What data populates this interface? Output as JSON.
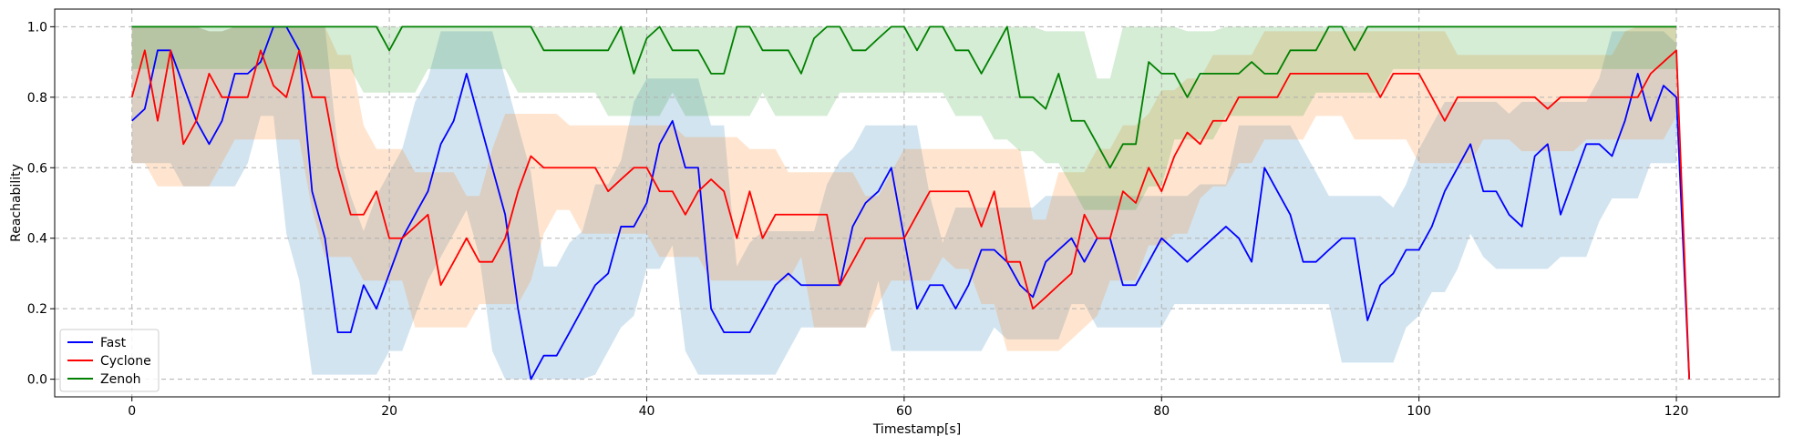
{
  "chart_data": {
    "type": "line",
    "xlabel": "Timestamp[s]",
    "ylabel": "Reachability",
    "xlim": [
      -6,
      128
    ],
    "ylim": [
      -0.05,
      1.05
    ],
    "xticks": [
      0,
      20,
      40,
      60,
      80,
      100,
      120
    ],
    "yticks": [
      0.0,
      0.2,
      0.4,
      0.6,
      0.8,
      1.0
    ],
    "xtick_labels": [
      "0",
      "20",
      "40",
      "60",
      "80",
      "100",
      "120"
    ],
    "ytick_labels": [
      "0.0",
      "0.2",
      "0.4",
      "0.6",
      "0.8",
      "1.0"
    ],
    "grid": true,
    "legend_position": "lower-left",
    "series": [
      {
        "name": "Fast",
        "color": "#0000ff",
        "band_color": "#1f77b4",
        "points": [
          [
            0,
            0.733
          ],
          [
            1,
            0.767
          ],
          [
            2,
            0.933
          ],
          [
            3,
            0.933
          ],
          [
            4,
            0.833
          ],
          [
            5,
            0.733
          ],
          [
            6,
            0.667
          ],
          [
            7,
            0.733
          ],
          [
            8,
            0.867
          ],
          [
            9,
            0.867
          ],
          [
            10,
            0.9
          ],
          [
            11,
            1.0
          ],
          [
            12,
            1.0
          ],
          [
            13,
            0.933
          ],
          [
            14,
            0.533
          ],
          [
            15,
            0.4
          ],
          [
            16,
            0.133
          ],
          [
            17,
            0.133
          ],
          [
            18,
            0.267
          ],
          [
            19,
            0.2
          ],
          [
            20,
            0.3
          ],
          [
            21,
            0.4
          ],
          [
            22,
            0.467
          ],
          [
            23,
            0.533
          ],
          [
            24,
            0.667
          ],
          [
            25,
            0.733
          ],
          [
            26,
            0.867
          ],
          [
            27,
            0.733
          ],
          [
            28,
            0.6
          ],
          [
            29,
            0.467
          ],
          [
            30,
            0.2
          ],
          [
            31,
            0.0
          ],
          [
            32,
            0.067
          ],
          [
            33,
            0.067
          ],
          [
            34,
            0.133
          ],
          [
            35,
            0.2
          ],
          [
            36,
            0.267
          ],
          [
            37,
            0.3
          ],
          [
            38,
            0.433
          ],
          [
            39,
            0.433
          ],
          [
            40,
            0.5
          ],
          [
            41,
            0.667
          ],
          [
            42,
            0.733
          ],
          [
            43,
            0.6
          ],
          [
            44,
            0.6
          ],
          [
            45,
            0.2
          ],
          [
            46,
            0.133
          ],
          [
            47,
            0.133
          ],
          [
            48,
            0.133
          ],
          [
            49,
            0.2
          ],
          [
            50,
            0.267
          ],
          [
            51,
            0.3
          ],
          [
            52,
            0.267
          ],
          [
            53,
            0.267
          ],
          [
            54,
            0.267
          ],
          [
            55,
            0.267
          ],
          [
            56,
            0.433
          ],
          [
            57,
            0.5
          ],
          [
            58,
            0.533
          ],
          [
            59,
            0.6
          ],
          [
            60,
            0.4
          ],
          [
            61,
            0.2
          ],
          [
            62,
            0.267
          ],
          [
            63,
            0.267
          ],
          [
            64,
            0.2
          ],
          [
            65,
            0.267
          ],
          [
            66,
            0.367
          ],
          [
            67,
            0.367
          ],
          [
            68,
            0.333
          ],
          [
            69,
            0.267
          ],
          [
            70,
            0.233
          ],
          [
            71,
            0.333
          ],
          [
            72,
            0.367
          ],
          [
            73,
            0.4
          ],
          [
            74,
            0.333
          ],
          [
            75,
            0.4
          ],
          [
            76,
            0.4
          ],
          [
            77,
            0.267
          ],
          [
            78,
            0.267
          ],
          [
            79,
            0.333
          ],
          [
            80,
            0.4
          ],
          [
            81,
            0.367
          ],
          [
            82,
            0.333
          ],
          [
            83,
            0.367
          ],
          [
            84,
            0.4
          ],
          [
            85,
            0.433
          ],
          [
            86,
            0.4
          ],
          [
            87,
            0.333
          ],
          [
            88,
            0.6
          ],
          [
            89,
            0.533
          ],
          [
            90,
            0.467
          ],
          [
            91,
            0.333
          ],
          [
            92,
            0.333
          ],
          [
            93,
            0.367
          ],
          [
            94,
            0.4
          ],
          [
            95,
            0.4
          ],
          [
            96,
            0.167
          ],
          [
            97,
            0.267
          ],
          [
            98,
            0.3
          ],
          [
            99,
            0.367
          ],
          [
            100,
            0.367
          ],
          [
            101,
            0.433
          ],
          [
            102,
            0.533
          ],
          [
            103,
            0.6
          ],
          [
            104,
            0.667
          ],
          [
            105,
            0.533
          ],
          [
            106,
            0.533
          ],
          [
            107,
            0.467
          ],
          [
            108,
            0.433
          ],
          [
            109,
            0.633
          ],
          [
            110,
            0.667
          ],
          [
            111,
            0.467
          ],
          [
            112,
            0.567
          ],
          [
            113,
            0.667
          ],
          [
            114,
            0.667
          ],
          [
            115,
            0.633
          ],
          [
            116,
            0.733
          ],
          [
            117,
            0.867
          ],
          [
            118,
            0.733
          ],
          [
            119,
            0.833
          ],
          [
            120,
            0.8
          ],
          [
            121,
            0.0
          ]
        ]
      },
      {
        "name": "Cyclone",
        "color": "#ff0000",
        "band_color": "#ff7f0e",
        "points": [
          [
            0,
            0.8
          ],
          [
            1,
            0.933
          ],
          [
            2,
            0.733
          ],
          [
            3,
            0.933
          ],
          [
            4,
            0.667
          ],
          [
            5,
            0.733
          ],
          [
            6,
            0.867
          ],
          [
            7,
            0.8
          ],
          [
            8,
            0.8
          ],
          [
            9,
            0.8
          ],
          [
            10,
            0.933
          ],
          [
            11,
            0.833
          ],
          [
            12,
            0.8
          ],
          [
            13,
            0.933
          ],
          [
            14,
            0.8
          ],
          [
            15,
            0.8
          ],
          [
            16,
            0.6
          ],
          [
            17,
            0.467
          ],
          [
            18,
            0.467
          ],
          [
            19,
            0.533
          ],
          [
            20,
            0.4
          ],
          [
            21,
            0.4
          ],
          [
            22,
            0.433
          ],
          [
            23,
            0.467
          ],
          [
            24,
            0.267
          ],
          [
            25,
            0.333
          ],
          [
            26,
            0.4
          ],
          [
            27,
            0.333
          ],
          [
            28,
            0.333
          ],
          [
            29,
            0.4
          ],
          [
            30,
            0.533
          ],
          [
            31,
            0.633
          ],
          [
            32,
            0.6
          ],
          [
            33,
            0.6
          ],
          [
            34,
            0.6
          ],
          [
            35,
            0.6
          ],
          [
            36,
            0.6
          ],
          [
            37,
            0.533
          ],
          [
            38,
            0.567
          ],
          [
            39,
            0.6
          ],
          [
            40,
            0.6
          ],
          [
            41,
            0.533
          ],
          [
            42,
            0.533
          ],
          [
            43,
            0.467
          ],
          [
            44,
            0.533
          ],
          [
            45,
            0.567
          ],
          [
            46,
            0.533
          ],
          [
            47,
            0.4
          ],
          [
            48,
            0.533
          ],
          [
            49,
            0.4
          ],
          [
            50,
            0.467
          ],
          [
            51,
            0.467
          ],
          [
            52,
            0.467
          ],
          [
            53,
            0.467
          ],
          [
            54,
            0.467
          ],
          [
            55,
            0.267
          ],
          [
            56,
            0.333
          ],
          [
            57,
            0.4
          ],
          [
            58,
            0.4
          ],
          [
            59,
            0.4
          ],
          [
            60,
            0.4
          ],
          [
            61,
            0.467
          ],
          [
            62,
            0.533
          ],
          [
            63,
            0.533
          ],
          [
            64,
            0.533
          ],
          [
            65,
            0.533
          ],
          [
            66,
            0.433
          ],
          [
            67,
            0.533
          ],
          [
            68,
            0.333
          ],
          [
            69,
            0.333
          ],
          [
            70,
            0.2
          ],
          [
            71,
            0.233
          ],
          [
            72,
            0.267
          ],
          [
            73,
            0.3
          ],
          [
            74,
            0.467
          ],
          [
            75,
            0.4
          ],
          [
            76,
            0.4
          ],
          [
            77,
            0.533
          ],
          [
            78,
            0.5
          ],
          [
            79,
            0.6
          ],
          [
            80,
            0.533
          ],
          [
            81,
            0.633
          ],
          [
            82,
            0.7
          ],
          [
            83,
            0.667
          ],
          [
            84,
            0.733
          ],
          [
            85,
            0.733
          ],
          [
            86,
            0.8
          ],
          [
            87,
            0.8
          ],
          [
            88,
            0.8
          ],
          [
            89,
            0.8
          ],
          [
            90,
            0.867
          ],
          [
            91,
            0.867
          ],
          [
            92,
            0.867
          ],
          [
            93,
            0.867
          ],
          [
            94,
            0.867
          ],
          [
            95,
            0.867
          ],
          [
            96,
            0.867
          ],
          [
            97,
            0.8
          ],
          [
            98,
            0.867
          ],
          [
            99,
            0.867
          ],
          [
            100,
            0.867
          ],
          [
            101,
            0.8
          ],
          [
            102,
            0.733
          ],
          [
            103,
            0.8
          ],
          [
            104,
            0.8
          ],
          [
            105,
            0.8
          ],
          [
            106,
            0.8
          ],
          [
            107,
            0.8
          ],
          [
            108,
            0.8
          ],
          [
            109,
            0.8
          ],
          [
            110,
            0.767
          ],
          [
            111,
            0.8
          ],
          [
            112,
            0.8
          ],
          [
            113,
            0.8
          ],
          [
            114,
            0.8
          ],
          [
            115,
            0.8
          ],
          [
            116,
            0.8
          ],
          [
            117,
            0.8
          ],
          [
            118,
            0.867
          ],
          [
            119,
            0.9
          ],
          [
            120,
            0.933
          ],
          [
            121,
            0.0
          ]
        ]
      },
      {
        "name": "Zenoh",
        "color": "#008000",
        "band_color": "#2ca02c",
        "points": [
          [
            0,
            1.0
          ],
          [
            18,
            1.0
          ],
          [
            19,
            1.0
          ],
          [
            20,
            0.933
          ],
          [
            21,
            1.0
          ],
          [
            31,
            1.0
          ],
          [
            32,
            0.933
          ],
          [
            37,
            0.933
          ],
          [
            38,
            1.0
          ],
          [
            39,
            0.867
          ],
          [
            40,
            0.967
          ],
          [
            41,
            1.0
          ],
          [
            42,
            0.933
          ],
          [
            44,
            0.933
          ],
          [
            45,
            0.867
          ],
          [
            46,
            0.867
          ],
          [
            47,
            1.0
          ],
          [
            48,
            1.0
          ],
          [
            49,
            0.933
          ],
          [
            51,
            0.933
          ],
          [
            52,
            0.867
          ],
          [
            53,
            0.967
          ],
          [
            54,
            1.0
          ],
          [
            55,
            1.0
          ],
          [
            56,
            0.933
          ],
          [
            57,
            0.933
          ],
          [
            58,
            0.967
          ],
          [
            59,
            1.0
          ],
          [
            60,
            1.0
          ],
          [
            61,
            0.933
          ],
          [
            62,
            1.0
          ],
          [
            63,
            1.0
          ],
          [
            64,
            0.933
          ],
          [
            65,
            0.933
          ],
          [
            66,
            0.867
          ],
          [
            67,
            0.933
          ],
          [
            68,
            1.0
          ],
          [
            69,
            0.8
          ],
          [
            70,
            0.8
          ],
          [
            71,
            0.767
          ],
          [
            72,
            0.867
          ],
          [
            73,
            0.733
          ],
          [
            74,
            0.733
          ],
          [
            75,
            0.667
          ],
          [
            76,
            0.6
          ],
          [
            77,
            0.667
          ],
          [
            78,
            0.667
          ],
          [
            79,
            0.9
          ],
          [
            80,
            0.867
          ],
          [
            81,
            0.867
          ],
          [
            82,
            0.8
          ],
          [
            83,
            0.867
          ],
          [
            84,
            0.867
          ],
          [
            85,
            0.867
          ],
          [
            86,
            0.867
          ],
          [
            87,
            0.9
          ],
          [
            88,
            0.867
          ],
          [
            89,
            0.867
          ],
          [
            90,
            0.933
          ],
          [
            91,
            0.933
          ],
          [
            92,
            0.933
          ],
          [
            93,
            1.0
          ],
          [
            94,
            1.0
          ],
          [
            95,
            0.933
          ],
          [
            96,
            1.0
          ],
          [
            120,
            1.0
          ]
        ]
      }
    ]
  }
}
